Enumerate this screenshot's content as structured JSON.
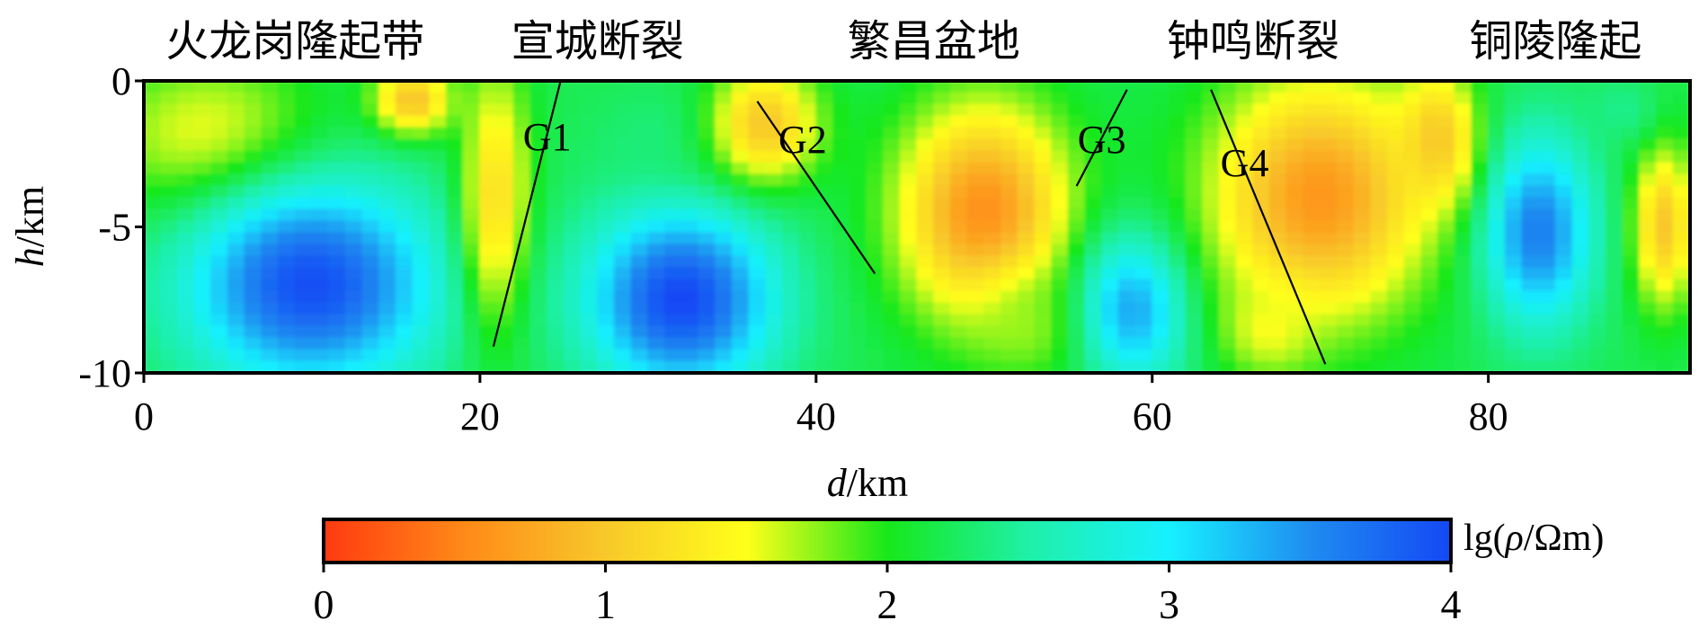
{
  "chart_data": {
    "type": "heatmap",
    "title": "",
    "xlabel_italic": "d",
    "xlabel_unit": "/km",
    "ylabel_italic": "h",
    "ylabel_unit": "/km",
    "xlim": [
      0,
      92
    ],
    "ylim": [
      -10,
      0
    ],
    "x_ticks": [
      0,
      20,
      40,
      60,
      80
    ],
    "x_tick_labels": [
      "0",
      "20",
      "40",
      "60",
      "80"
    ],
    "y_ticks": [
      0,
      -5,
      -10
    ],
    "y_tick_labels": [
      "0",
      "-5",
      "-10"
    ],
    "region_labels": [
      {
        "text": "火龙岗隆起带",
        "x": 9
      },
      {
        "text": "宣城断裂",
        "x": 27
      },
      {
        "text": "繁昌盆地",
        "x": 47
      },
      {
        "text": "钟鸣断裂",
        "x": 66
      },
      {
        "text": "铜陵隆起",
        "x": 84
      }
    ],
    "faults": [
      {
        "name": "G1",
        "top": [
          24.8,
          0
        ],
        "bottom": [
          20.8,
          -9.1
        ],
        "label_at": [
          24.0,
          -1.9
        ]
      },
      {
        "name": "G2",
        "top": [
          36.5,
          -0.7
        ],
        "bottom": [
          43.5,
          -6.6
        ],
        "label_at": [
          39.2,
          -2.0
        ]
      },
      {
        "name": "G3",
        "top": [
          58.5,
          -0.3
        ],
        "bottom": [
          55.5,
          -3.6
        ],
        "label_at": [
          57.0,
          -2.0
        ]
      },
      {
        "name": "G4",
        "top": [
          63.5,
          -0.3
        ],
        "bottom": [
          70.3,
          -9.7
        ],
        "label_at": [
          65.5,
          -2.8
        ]
      }
    ],
    "colorbar": {
      "label_prefix": "lg(",
      "label_rho": "ρ",
      "label_suffix": "/Ωm)",
      "range": [
        0,
        4
      ],
      "ticks": [
        0,
        1,
        2,
        3,
        4
      ],
      "tick_labels": [
        "0",
        "1",
        "2",
        "3",
        "4"
      ],
      "colors": [
        "#ff3a10",
        "#ff8a18",
        "#f8c82a",
        "#ffff1a",
        "#17e81a",
        "#1ff0a8",
        "#17f0ff",
        "#1f8cf0",
        "#1448f5"
      ]
    },
    "field_background_value": 2.2,
    "field_anomalies": [
      {
        "x": 4,
        "y": -2,
        "rx": 7,
        "ry": 3,
        "v": 1.45
      },
      {
        "x": 16,
        "y": -0.7,
        "rx": 2.5,
        "ry": 1.3,
        "v": 0.9
      },
      {
        "x": 10,
        "y": -7,
        "rx": 8,
        "ry": 3.8,
        "v": 3.95
      },
      {
        "x": 21,
        "y": -4,
        "rx": 2.2,
        "ry": 5,
        "v": 1.2
      },
      {
        "x": 32,
        "y": -7.5,
        "rx": 6,
        "ry": 3.4,
        "v": 4.0
      },
      {
        "x": 31,
        "y": -2,
        "rx": 4,
        "ry": 1.8,
        "v": 2.35
      },
      {
        "x": 37,
        "y": -1.5,
        "rx": 3.5,
        "ry": 2.2,
        "v": 1.0
      },
      {
        "x": 50,
        "y": -4.5,
        "rx": 5.5,
        "ry": 4,
        "v": 0.55
      },
      {
        "x": 53,
        "y": -8.2,
        "rx": 4,
        "ry": 2,
        "v": 1.7
      },
      {
        "x": 59,
        "y": -7.8,
        "rx": 3.5,
        "ry": 2.8,
        "v": 3.4
      },
      {
        "x": 70,
        "y": -4,
        "rx": 7,
        "ry": 4.5,
        "v": 0.6
      },
      {
        "x": 67,
        "y": -8.5,
        "rx": 3,
        "ry": 1.7,
        "v": 1.5
      },
      {
        "x": 83,
        "y": -5.2,
        "rx": 3.5,
        "ry": 3.5,
        "v": 3.6
      },
      {
        "x": 77,
        "y": -2,
        "rx": 2.5,
        "ry": 2.5,
        "v": 1.0
      },
      {
        "x": 90.5,
        "y": -5,
        "rx": 2,
        "ry": 3,
        "v": 1.0
      },
      {
        "x": 88,
        "y": -1,
        "rx": 2.2,
        "ry": 1.2,
        "v": 2.4
      }
    ]
  }
}
